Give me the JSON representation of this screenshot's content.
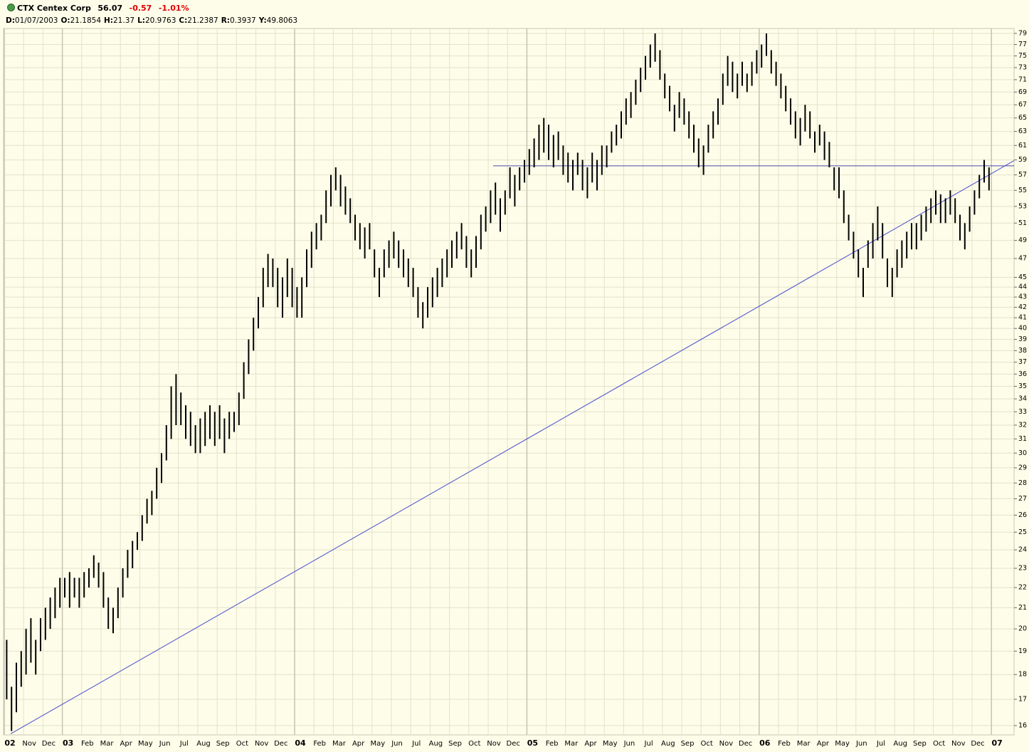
{
  "header": {
    "symbol": "CTX Centex Corp",
    "last": "56.07",
    "change": "-0.57",
    "change_pct": "-1.01%",
    "fields": [
      {
        "key": "D:",
        "value": "01/07/2003"
      },
      {
        "key": "O:",
        "value": "21.1854"
      },
      {
        "key": "H:",
        "value": "21.37"
      },
      {
        "key": "L:",
        "value": "20.9763"
      },
      {
        "key": "C:",
        "value": "21.2387"
      },
      {
        "key": "R:",
        "value": "0.3937"
      },
      {
        "key": "Y:",
        "value": "49.8063"
      }
    ]
  },
  "chart_data": {
    "type": "range-bars",
    "log_scale": true,
    "grid": true,
    "color": "#000000",
    "categories": [
      "02",
      "Nov",
      "Dec",
      "03",
      "Feb",
      "Mar",
      "Apr",
      "May",
      "Jun",
      "Jul",
      "Aug",
      "Sep",
      "Oct",
      "Nov",
      "Dec",
      "04",
      "Feb",
      "Mar",
      "Apr",
      "May",
      "Jun",
      "Jul",
      "Aug",
      "Sep",
      "Oct",
      "Nov",
      "Dec",
      "05",
      "Feb",
      "Mar",
      "Apr",
      "May",
      "Jun",
      "Jul",
      "Aug",
      "Sep",
      "Oct",
      "Nov",
      "Dec",
      "06",
      "Feb",
      "Mar",
      "Apr",
      "May",
      "Jun",
      "Jul",
      "Aug",
      "Sep",
      "Oct",
      "Nov",
      "Dec",
      "07"
    ],
    "bars": [
      [
        [
          17,
          19.5
        ],
        [
          15.8,
          17.5
        ],
        [
          16.5,
          18.5
        ],
        [
          17.5,
          19
        ]
      ],
      [
        [
          18,
          20
        ],
        [
          18.5,
          20.5
        ],
        [
          18,
          19.5
        ],
        [
          19,
          20.5
        ]
      ],
      [
        [
          19.5,
          21
        ],
        [
          20,
          21.5
        ],
        [
          20.5,
          22
        ],
        [
          21,
          22.5
        ]
      ],
      [
        [
          21.5,
          22.5
        ],
        [
          21,
          22.8
        ],
        [
          21.5,
          22.5
        ],
        [
          21,
          22.5
        ]
      ],
      [
        [
          21.5,
          22.8
        ],
        [
          22,
          23
        ],
        [
          22.5,
          23.7
        ],
        [
          22,
          23.3
        ]
      ],
      [
        [
          21,
          22.8
        ],
        [
          20,
          21.5
        ],
        [
          19.8,
          21
        ],
        [
          20.5,
          22
        ]
      ],
      [
        [
          21.5,
          23
        ],
        [
          22.5,
          24
        ],
        [
          23,
          24.5
        ],
        [
          24,
          25
        ]
      ],
      [
        [
          24.5,
          26
        ],
        [
          25.5,
          27
        ],
        [
          26,
          27.5
        ],
        [
          27,
          29
        ]
      ],
      [
        [
          28,
          30
        ],
        [
          29.5,
          32
        ],
        [
          31,
          35
        ],
        [
          32,
          36
        ]
      ],
      [
        [
          32,
          34.5
        ],
        [
          31,
          33.5
        ],
        [
          30.5,
          33
        ],
        [
          30,
          32
        ]
      ],
      [
        [
          30,
          32.5
        ],
        [
          30.5,
          33
        ],
        [
          31,
          33.5
        ],
        [
          30.5,
          33
        ]
      ],
      [
        [
          31,
          33.5
        ],
        [
          30,
          32.5
        ],
        [
          31,
          33
        ],
        [
          31.5,
          33
        ]
      ],
      [
        [
          32,
          34.5
        ],
        [
          34,
          37
        ],
        [
          36,
          39
        ],
        [
          38,
          41
        ]
      ],
      [
        [
          40,
          43
        ],
        [
          42,
          46
        ],
        [
          44,
          47.5
        ],
        [
          44,
          47
        ]
      ],
      [
        [
          42,
          46
        ],
        [
          41,
          45
        ],
        [
          43,
          47
        ],
        [
          42,
          46
        ]
      ],
      [
        [
          41,
          44
        ],
        [
          41,
          45
        ],
        [
          44,
          48
        ],
        [
          46,
          50
        ]
      ],
      [
        [
          48,
          51
        ],
        [
          49,
          52
        ],
        [
          51,
          55
        ],
        [
          53,
          57
        ]
      ],
      [
        [
          55,
          58
        ],
        [
          53,
          57
        ],
        [
          52,
          55.5
        ],
        [
          51,
          54
        ]
      ],
      [
        [
          49,
          52
        ],
        [
          48,
          51
        ],
        [
          47,
          50.5
        ],
        [
          48,
          51
        ]
      ],
      [
        [
          45,
          48
        ],
        [
          43,
          46
        ],
        [
          45,
          48
        ],
        [
          46,
          49
        ]
      ],
      [
        [
          47,
          50
        ],
        [
          46,
          49
        ],
        [
          45,
          48
        ],
        [
          44,
          47
        ]
      ],
      [
        [
          43,
          46
        ],
        [
          41,
          44
        ],
        [
          40,
          42.5
        ],
        [
          41,
          44
        ]
      ],
      [
        [
          42,
          45
        ],
        [
          43,
          46
        ],
        [
          44,
          47
        ],
        [
          45,
          48
        ]
      ],
      [
        [
          46,
          49
        ],
        [
          47,
          50
        ],
        [
          48,
          51
        ],
        [
          46,
          49.5
        ]
      ],
      [
        [
          45,
          48
        ],
        [
          46,
          49.5
        ],
        [
          48,
          52
        ],
        [
          50,
          53
        ]
      ],
      [
        [
          51,
          55
        ],
        [
          52,
          56
        ],
        [
          50,
          54
        ],
        [
          52,
          55
        ]
      ],
      [
        [
          54,
          58
        ],
        [
          53,
          57
        ],
        [
          55,
          58
        ],
        [
          56,
          59
        ]
      ],
      [
        [
          57,
          60.5
        ],
        [
          58,
          62
        ],
        [
          59,
          64
        ],
        [
          60,
          65
        ]
      ],
      [
        [
          59,
          64
        ],
        [
          58,
          62.5
        ],
        [
          59,
          63
        ],
        [
          57,
          61
        ]
      ],
      [
        [
          56,
          60
        ],
        [
          55,
          59
        ],
        [
          57,
          60
        ],
        [
          55,
          59
        ]
      ],
      [
        [
          54,
          58
        ],
        [
          56,
          60
        ],
        [
          55,
          59
        ],
        [
          57,
          61
        ]
      ],
      [
        [
          58,
          61
        ],
        [
          60,
          63
        ],
        [
          61,
          64
        ],
        [
          62,
          66
        ]
      ],
      [
        [
          64,
          68
        ],
        [
          65,
          69
        ],
        [
          67,
          71
        ],
        [
          69,
          73
        ]
      ],
      [
        [
          71,
          75
        ],
        [
          73,
          77
        ],
        [
          74,
          79
        ],
        [
          71,
          76
        ]
      ],
      [
        [
          68,
          72
        ],
        [
          66,
          70
        ],
        [
          63,
          67
        ],
        [
          65,
          69
        ]
      ],
      [
        [
          64,
          68
        ],
        [
          62,
          66
        ],
        [
          60,
          64
        ],
        [
          58,
          62
        ]
      ],
      [
        [
          57,
          61
        ],
        [
          60,
          64
        ],
        [
          62,
          66
        ],
        [
          64,
          68
        ]
      ],
      [
        [
          67,
          72
        ],
        [
          70,
          75
        ],
        [
          69,
          74
        ],
        [
          68,
          72
        ]
      ],
      [
        [
          70,
          74
        ],
        [
          69,
          72
        ],
        [
          70,
          74
        ],
        [
          72,
          76
        ]
      ],
      [
        [
          73,
          77
        ],
        [
          75,
          79
        ],
        [
          72,
          76
        ],
        [
          70,
          74
        ]
      ],
      [
        [
          68,
          72
        ],
        [
          66,
          70
        ],
        [
          64,
          68
        ],
        [
          62,
          66
        ]
      ],
      [
        [
          61,
          65
        ],
        [
          63,
          67
        ],
        [
          62,
          66
        ],
        [
          60,
          63
        ]
      ],
      [
        [
          61,
          64
        ],
        [
          59,
          63
        ],
        [
          58,
          61.5
        ],
        [
          55,
          58
        ]
      ],
      [
        [
          54,
          58
        ],
        [
          51,
          55
        ],
        [
          49,
          52
        ],
        [
          47,
          50
        ]
      ],
      [
        [
          45,
          48
        ],
        [
          43,
          46
        ],
        [
          46,
          49
        ],
        [
          47,
          51
        ]
      ],
      [
        [
          49,
          53
        ],
        [
          47,
          51
        ],
        [
          44,
          47
        ],
        [
          43,
          46
        ]
      ],
      [
        [
          45,
          48
        ],
        [
          46,
          49
        ],
        [
          47,
          50
        ],
        [
          48,
          51
        ]
      ],
      [
        [
          48,
          51
        ],
        [
          49,
          52
        ],
        [
          50,
          53
        ],
        [
          51,
          54
        ]
      ],
      [
        [
          52,
          55
        ],
        [
          51,
          54.5
        ],
        [
          51,
          54
        ],
        [
          52,
          55
        ]
      ],
      [
        [
          51,
          54
        ],
        [
          49,
          52
        ],
        [
          48,
          51
        ],
        [
          50,
          53
        ]
      ],
      [
        [
          52,
          55
        ],
        [
          54,
          57
        ],
        [
          56,
          59
        ],
        [
          55,
          58
        ]
      ],
      []
    ],
    "horizontal_line": {
      "value": 58.2,
      "color": "#4a4ab0"
    },
    "trendline": {
      "start": 15.7,
      "end": 58.9,
      "color": "#4a4ad0"
    },
    "ylim": [
      15.66,
      79.9
    ],
    "yticks": [
      16,
      17,
      18,
      19,
      20,
      21,
      22,
      23,
      24,
      25,
      26,
      27,
      28,
      29,
      30,
      31,
      32,
      33,
      34,
      35,
      36,
      37,
      38,
      39,
      40,
      41,
      42,
      43,
      44,
      45,
      47,
      49,
      51,
      53,
      55,
      57,
      59,
      61,
      63,
      65,
      67,
      69,
      71,
      73,
      75,
      77,
      79
    ]
  }
}
